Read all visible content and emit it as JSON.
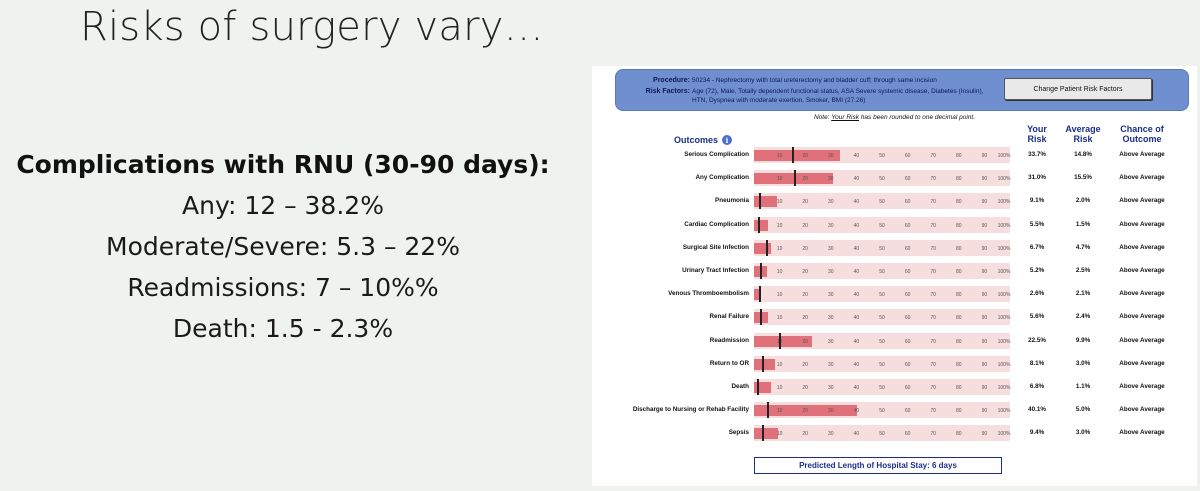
{
  "slide": {
    "title": "Risks of surgery vary…",
    "left": {
      "heading": "Complications with RNU (30-90 days):",
      "lines": [
        "Any: 12 – 38.2%",
        "Moderate/Severe: 5.3 – 22%",
        "Readmissions: 7 – 10%%",
        "Death: 1.5 - 2.3%"
      ]
    }
  },
  "calculator": {
    "procedure_label": "Procedure:",
    "procedure_value": "50234 - Nephrectomy with total ureterectomy and bladder cuff; through same incision",
    "risk_factors_label": "Risk Factors:",
    "risk_factors_value": "Age (72), Male, Totally dependent functional status, ASA Severe systemic disease, Diabetes (Insulin), HTN, Dyspnea with moderate exertion, Smoker, BMI (27.26)",
    "change_button": "Change Patient Risk Factors",
    "note_prefix": "Note: ",
    "note_emph": "Your Risk",
    "note_suffix": " has been rounded to one decimal point.",
    "outcomes_header": "Outcomes",
    "col_your": "Your Risk",
    "col_avg": "Average Risk",
    "col_chance": "Chance of Outcome",
    "ticks": [
      "10",
      "20",
      "30",
      "40",
      "50",
      "60",
      "70",
      "80",
      "90",
      "100%"
    ],
    "rows": [
      {
        "label": "Serious Complication",
        "your": "33.7%",
        "avg": "14.8%",
        "chance": "Above Average",
        "your_value": 33.7,
        "avg_value": 14.8
      },
      {
        "label": "Any Complication",
        "your": "31.0%",
        "avg": "15.5%",
        "chance": "Above Average",
        "your_value": 31.0,
        "avg_value": 15.5
      },
      {
        "label": "Pneumonia",
        "your": "9.1%",
        "avg": "2.0%",
        "chance": "Above Average",
        "your_value": 9.1,
        "avg_value": 2.0
      },
      {
        "label": "Cardiac Complication",
        "your": "5.5%",
        "avg": "1.5%",
        "chance": "Above Average",
        "your_value": 5.5,
        "avg_value": 1.5
      },
      {
        "label": "Surgical Site Infection",
        "your": "6.7%",
        "avg": "4.7%",
        "chance": "Above Average",
        "your_value": 6.7,
        "avg_value": 4.7
      },
      {
        "label": "Urinary Tract Infection",
        "your": "5.2%",
        "avg": "2.5%",
        "chance": "Above Average",
        "your_value": 5.2,
        "avg_value": 2.5
      },
      {
        "label": "Venous Thromboembolism",
        "your": "2.6%",
        "avg": "2.1%",
        "chance": "Above Average",
        "your_value": 2.6,
        "avg_value": 2.1
      },
      {
        "label": "Renal Failure",
        "your": "5.6%",
        "avg": "2.4%",
        "chance": "Above Average",
        "your_value": 5.6,
        "avg_value": 2.4
      },
      {
        "label": "Readmission",
        "your": "22.5%",
        "avg": "9.9%",
        "chance": "Above Average",
        "your_value": 22.5,
        "avg_value": 9.9
      },
      {
        "label": "Return to OR",
        "your": "8.1%",
        "avg": "3.0%",
        "chance": "Above Average",
        "your_value": 8.1,
        "avg_value": 3.0
      },
      {
        "label": "Death",
        "your": "6.8%",
        "avg": "1.1%",
        "chance": "Above Average",
        "your_value": 6.8,
        "avg_value": 1.1
      },
      {
        "label": "Discharge to Nursing or Rehab Facility",
        "your": "40.1%",
        "avg": "5.0%",
        "chance": "Above Average",
        "your_value": 40.1,
        "avg_value": 5.0
      },
      {
        "label": "Sepsis",
        "your": "9.4%",
        "avg": "3.0%",
        "chance": "Above Average",
        "your_value": 9.4,
        "avg_value": 3.0
      }
    ],
    "los": "Predicted Length of Hospital Stay: 6 days",
    "colors": {
      "header": "#6f8fcf",
      "bar_fill": "#e0707a",
      "bar_bg": "#f7dede",
      "accent": "#1b2f8a"
    }
  }
}
